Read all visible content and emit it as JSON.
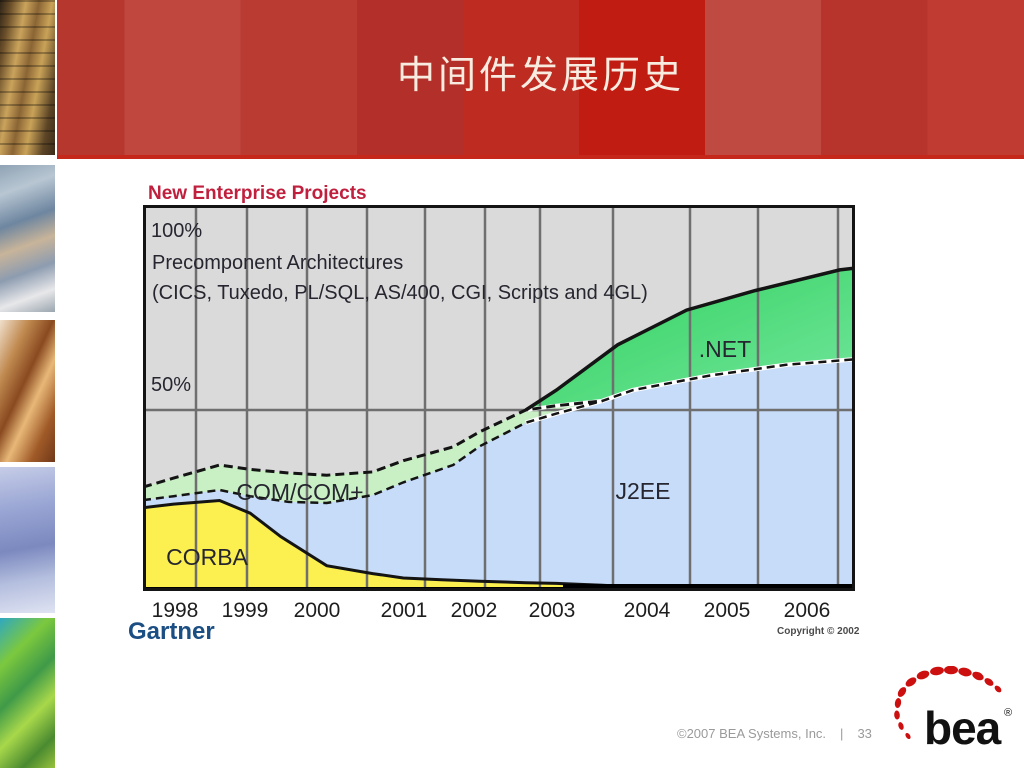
{
  "slide": {
    "title": "中间件发展历史",
    "footer": {
      "copyright": "©2007 BEA Systems, Inc.",
      "separator": "|",
      "page_number": "33"
    }
  },
  "logos": {
    "gartner": "Gartner",
    "bea": "bea",
    "registered": "®"
  },
  "chart_data": {
    "type": "area",
    "title": "New Enterprise Projects",
    "subtitle": "",
    "source": "Gartner",
    "copyright": "Copyright © 2002",
    "unit": "percent of new enterprise projects (stacked share)",
    "ylabels": {
      "top": "100%",
      "middle": "50%"
    },
    "annotation_line1": "Precomponent Architectures",
    "annotation_line2": "(CICS, Tuxedo, PL/SQL, AS/400, CGI, Scripts and 4GL)",
    "years": [
      "1998",
      "1999",
      "2000",
      "2001",
      "2002",
      "2003",
      "2004",
      "2005",
      "2006"
    ],
    "xlim": [
      1997.6,
      2006.9
    ],
    "ylim": [
      0,
      106.6
    ],
    "grid": "vertical-gray-lines",
    "series": [
      {
        "name": "CORBA",
        "label": "CORBA",
        "color": "#fbf04f",
        "top_boundary_pct": [
          [
            1997.6,
            23
          ],
          [
            1998,
            24
          ],
          [
            1998.6,
            25
          ],
          [
            1999,
            21.5
          ],
          [
            1999.4,
            15
          ],
          [
            2000,
            7
          ],
          [
            2000.6,
            4.8
          ],
          [
            2001,
            3.6
          ],
          [
            2001.5,
            3.1
          ],
          [
            2002,
            2.7
          ],
          [
            2002.6,
            2.3
          ],
          [
            2003,
            2.1
          ],
          [
            2003.6,
            1.6
          ],
          [
            2004,
            1.1
          ],
          [
            2005,
            1
          ],
          [
            2006,
            1
          ],
          [
            2006.9,
            1
          ]
        ]
      },
      {
        "name": "J2EE",
        "label": "J2EE",
        "color": "#c7dcf8",
        "top_boundary_pct": [
          [
            1997.6,
            25.1
          ],
          [
            1998,
            26.2
          ],
          [
            1998.6,
            27.9
          ],
          [
            1999,
            26.2
          ],
          [
            1999.5,
            24.6
          ],
          [
            2000,
            24.3
          ],
          [
            2000.6,
            26.5
          ],
          [
            2001,
            30
          ],
          [
            2001.65,
            34.8
          ],
          [
            2002,
            40
          ],
          [
            2002.6,
            46.5
          ],
          [
            2003,
            49
          ],
          [
            2003.6,
            52.5
          ],
          [
            2004,
            55.5
          ],
          [
            2004.5,
            57.5
          ],
          [
            2005,
            59.5
          ],
          [
            2005.5,
            61
          ],
          [
            2006,
            62.5
          ],
          [
            2006.9,
            64
          ]
        ]
      },
      {
        "name": "COM/COM+",
        "label": "COM/COM+",
        "color": "#c9efc5",
        "ends_at": 2003.6,
        "top_boundary_pct": [
          [
            1997.6,
            28.7
          ],
          [
            1998,
            31.2
          ],
          [
            1998.6,
            34.8
          ],
          [
            1999,
            33.6
          ],
          [
            1999.5,
            32.6
          ],
          [
            2000,
            32
          ],
          [
            2000.6,
            32.9
          ],
          [
            2001,
            36
          ],
          [
            2001.65,
            39.8
          ],
          [
            2002,
            44
          ],
          [
            2002.6,
            50
          ],
          [
            2003,
            51.2
          ],
          [
            2003.6,
            52.5
          ]
        ]
      },
      {
        "name": ".NET",
        "label": ".NET",
        "color": "#2fd05c",
        "color2": "#74e69e",
        "starts_at": 2002.6,
        "top_boundary_pct": [
          [
            2002.6,
            50
          ],
          [
            2003,
            55.5
          ],
          [
            2003.8,
            68
          ],
          [
            2004.7,
            77.6
          ],
          [
            2005.6,
            83
          ],
          [
            2006.7,
            88.7
          ],
          [
            2006.9,
            89.2
          ]
        ]
      },
      {
        "name": "Precomponent Architectures",
        "label": "Precomponent Architectures",
        "color": "#dadada",
        "note": "remainder above all stacked series up to 100%"
      }
    ],
    "colors": {
      "background": "#dadada",
      "gridline": "#6f6f6f",
      "outline": "#141414",
      "text": "#262630",
      "title": "#c01f3d"
    }
  }
}
